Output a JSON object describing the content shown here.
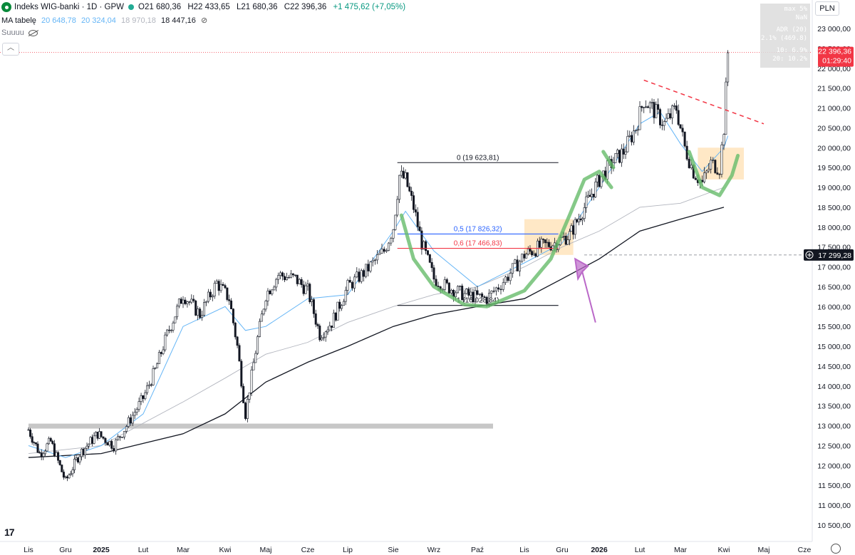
{
  "header": {
    "title": "Indeks WIG-banki · 1D · GPW",
    "ohlc": [
      "O21 680,36",
      "H22 433,65",
      "L21 680,36",
      "C22 396,36",
      "+1 475,62 (+7,05%)"
    ]
  },
  "ma_legend": {
    "label": "MA tabelę",
    "values": [
      "20 648,78",
      "20 324,04",
      "18 970,18",
      "18 447,16"
    ],
    "visibility_label": "Suuuu"
  },
  "currency": "PLN",
  "stats_box": [
    "max 5%",
    "NaN",
    "ADR (20)",
    "2.1% (469.8)",
    "10: 6.9%",
    "20: 10.2%"
  ],
  "price_tag": {
    "price": "22 396,36",
    "countdown": "01:29:40"
  },
  "crosshair_tag": "17 299,28",
  "colors": {
    "candle": "#131722",
    "ma_fast": "#64b5f6",
    "ma_mid": "#b2b5be",
    "ma_slow": "#131722",
    "price_tag": "#f23645",
    "arc": "#66bb6a",
    "arrow": "#ba68c8",
    "box": "#ffcc80",
    "resistance_line": "#f23645"
  },
  "chart_data": {
    "type": "candlestick",
    "y_axis_ticks": [
      23000,
      22500,
      22000,
      21500,
      21000,
      20500,
      20000,
      19500,
      19000,
      18500,
      18000,
      17500,
      17000,
      16500,
      16000,
      15500,
      15000,
      14500,
      14000,
      13500,
      13000,
      12500,
      12000,
      11500,
      11000,
      10500
    ],
    "y_tick_labels": [
      "23 000,00",
      "22 500,00",
      "22 000,00",
      "21 500,00",
      "21 000,00",
      "20 500,00",
      "20 000,00",
      "19 500,00",
      "19 000,00",
      "18 500,00",
      "18 000,00",
      "17 500,00",
      "17 000,00",
      "16 500,00",
      "16 000,00",
      "15 500,00",
      "15 000,00",
      "14 500,00",
      "14 000,00",
      "13 500,00",
      "13 000,00",
      "12 500,00",
      "12 000,00",
      "11 500,00",
      "11 000,00",
      "10 500,00"
    ],
    "x_axis_labels": [
      "Lis",
      "Gru",
      "2025",
      "Lut",
      "Mar",
      "Kwi",
      "Maj",
      "Cze",
      "Lip",
      "Sie",
      "Wrz",
      "Paź",
      "Lis",
      "Gru",
      "2026",
      "Lut",
      "Mar",
      "Kwi",
      "Maj",
      "Cze"
    ],
    "x_axis_positions": [
      0,
      1,
      2,
      3,
      4,
      5,
      6,
      7,
      8,
      9,
      10,
      11,
      12,
      13,
      14,
      15,
      16,
      17,
      18,
      19
    ],
    "ylim": [
      10300,
      23400
    ],
    "close_path": [
      [
        0,
        12900
      ],
      [
        0.3,
        12300
      ],
      [
        0.6,
        12600
      ],
      [
        1,
        11600
      ],
      [
        1.4,
        12300
      ],
      [
        1.9,
        12800
      ],
      [
        2.3,
        12500
      ],
      [
        2.6,
        13000
      ],
      [
        3,
        13700
      ],
      [
        3.3,
        14400
      ],
      [
        3.6,
        15300
      ],
      [
        4,
        16300
      ],
      [
        4.4,
        15800
      ],
      [
        4.8,
        16600
      ],
      [
        5.1,
        16200
      ],
      [
        5.3,
        15000
      ],
      [
        5.5,
        13300
      ],
      [
        5.8,
        15200
      ],
      [
        6,
        16300
      ],
      [
        6.3,
        16800
      ],
      [
        6.7,
        16700
      ],
      [
        7,
        16400
      ],
      [
        7.3,
        15300
      ],
      [
        7.6,
        15600
      ],
      [
        8,
        16500
      ],
      [
        8.4,
        16900
      ],
      [
        8.8,
        17400
      ],
      [
        9,
        18000
      ],
      [
        9.15,
        19300
      ],
      [
        9.3,
        19200
      ],
      [
        9.5,
        18500
      ],
      [
        9.7,
        17600
      ],
      [
        10,
        16700
      ],
      [
        10.3,
        16500
      ],
      [
        10.7,
        16300
      ],
      [
        11.2,
        16200
      ],
      [
        11.6,
        16700
      ],
      [
        12,
        17300
      ],
      [
        12.4,
        17500
      ],
      [
        12.8,
        17600
      ],
      [
        13.2,
        17800
      ],
      [
        13.6,
        18500
      ],
      [
        14,
        19200
      ],
      [
        14.3,
        19600
      ],
      [
        14.6,
        19900
      ],
      [
        14.9,
        20500
      ],
      [
        15.1,
        21200
      ],
      [
        15.3,
        21000
      ],
      [
        15.6,
        20600
      ],
      [
        15.9,
        21000
      ],
      [
        16.1,
        20000
      ],
      [
        16.3,
        19400
      ],
      [
        16.5,
        19100
      ],
      [
        16.7,
        19600
      ],
      [
        16.9,
        19500
      ],
      [
        17,
        20500
      ],
      [
        17.1,
        22400
      ]
    ],
    "ma_fast_path": [
      [
        0,
        12500
      ],
      [
        1,
        12200
      ],
      [
        2,
        12500
      ],
      [
        3,
        13300
      ],
      [
        4,
        15500
      ],
      [
        5,
        16000
      ],
      [
        5.5,
        15400
      ],
      [
        6,
        15500
      ],
      [
        7,
        16200
      ],
      [
        8,
        16300
      ],
      [
        9,
        17900
      ],
      [
        9.3,
        18400
      ],
      [
        10,
        17400
      ],
      [
        11,
        16500
      ],
      [
        12,
        17100
      ],
      [
        13,
        17600
      ],
      [
        14,
        19000
      ],
      [
        15,
        20600
      ],
      [
        15.5,
        20900
      ],
      [
        16,
        20100
      ],
      [
        16.5,
        19400
      ],
      [
        17,
        20000
      ],
      [
        17.1,
        20300
      ]
    ],
    "ma_mid_path": [
      [
        0,
        12300
      ],
      [
        2,
        12500
      ],
      [
        4,
        13600
      ],
      [
        5,
        14200
      ],
      [
        6,
        14800
      ],
      [
        7,
        15100
      ],
      [
        8,
        15600
      ],
      [
        9,
        16000
      ],
      [
        10,
        16300
      ],
      [
        11,
        16500
      ],
      [
        12,
        17000
      ],
      [
        13,
        17500
      ],
      [
        14,
        17900
      ],
      [
        15,
        18500
      ],
      [
        16,
        18600
      ],
      [
        17,
        19000
      ]
    ],
    "ma_slow_path": [
      [
        0,
        12200
      ],
      [
        2,
        12300
      ],
      [
        4,
        12800
      ],
      [
        5,
        13300
      ],
      [
        6,
        14100
      ],
      [
        7,
        14600
      ],
      [
        8,
        15000
      ],
      [
        9,
        15500
      ],
      [
        10,
        15800
      ],
      [
        11,
        16000
      ],
      [
        12,
        16200
      ],
      [
        13,
        16700
      ],
      [
        14,
        17200
      ],
      [
        15,
        17900
      ],
      [
        16,
        18200
      ],
      [
        17,
        18500
      ]
    ],
    "fibonacci": {
      "start": 9.1,
      "end": 12.9,
      "levels": [
        {
          "label": "0 (19 623,81)",
          "value": 19623.81,
          "color": "#131722"
        },
        {
          "label": "0,5 (17 826,32)",
          "value": 17826.32,
          "color": "#2962ff"
        },
        {
          "label": "0,6 (17 466,83)",
          "value": 17466.83,
          "color": "#f23645"
        },
        {
          "label": "1 (16 028,84)",
          "value": 16028.84,
          "color": "#131722"
        }
      ]
    },
    "support_band": {
      "start": 0,
      "end": 11,
      "value": 13000
    },
    "boxes": [
      {
        "x0": 12.0,
        "x1": 13.3,
        "y0": 17300,
        "y1": 18200
      },
      {
        "x0": 16.4,
        "x1": 17.5,
        "y0": 19200,
        "y1": 20000
      }
    ],
    "resistance_line": {
      "x0": 15.1,
      "y0": 21700,
      "x1": 18.0,
      "y1": 20600
    },
    "last_price": 22396.36,
    "crosshair_price": 17299.28
  }
}
